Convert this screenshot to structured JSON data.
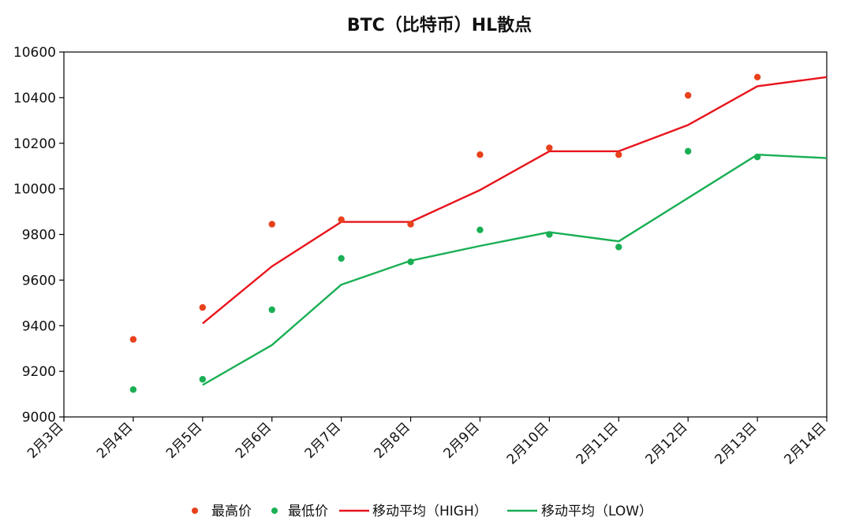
{
  "chart_data": {
    "type": "scatter",
    "title": "BTC（比特币）HL散点",
    "categories": [
      "2月3日",
      "2月4日",
      "2月5日",
      "2月6日",
      "2月7日",
      "2月8日",
      "2月9日",
      "2月10日",
      "2月11日",
      "2月12日",
      "2月13日",
      "2月14日"
    ],
    "ylim": [
      9000,
      10600
    ],
    "yticks": [
      9000,
      9200,
      9400,
      9600,
      9800,
      10000,
      10200,
      10400,
      10600
    ],
    "grid": false,
    "legend_position": "bottom",
    "series": [
      {
        "name": "最高价",
        "kind": "scatter",
        "color": "#e8411c",
        "values": [
          null,
          9340,
          9480,
          9845,
          9865,
          9845,
          10150,
          10180,
          10150,
          10410,
          10490,
          null
        ]
      },
      {
        "name": "最低价",
        "kind": "scatter",
        "color": "#1aaf54",
        "values": [
          null,
          9120,
          9165,
          9470,
          9695,
          9680,
          9820,
          9800,
          9745,
          10165,
          10140,
          null
        ]
      },
      {
        "name": "移动平均（HIGH）",
        "kind": "line",
        "color": "#e8141c",
        "values": [
          null,
          null,
          9410,
          9660,
          9855,
          9855,
          9995,
          10165,
          10165,
          10280,
          10450,
          10490
        ]
      },
      {
        "name": "移动平均（LOW）",
        "kind": "line",
        "color": "#1aaf54",
        "values": [
          null,
          null,
          9140,
          9315,
          9580,
          9685,
          9750,
          9810,
          9770,
          9960,
          10150,
          10135
        ]
      }
    ]
  }
}
